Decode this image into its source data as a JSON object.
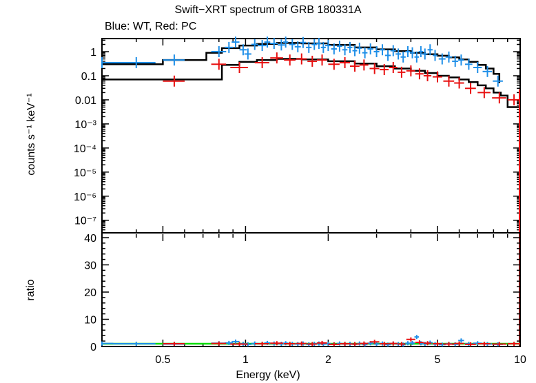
{
  "chart_data": [
    {
      "type": "scatter",
      "title": "Swift−XRT spectrum of GRB 180331A",
      "subtitle": "Blue: WT, Red: PC",
      "xlabel": "Energy (keV)",
      "ylabel": "counts s⁻¹ keV⁻¹",
      "xscale": "log",
      "yscale": "log",
      "xlim": [
        0.3,
        10
      ],
      "ylim": [
        3e-08,
        3.5
      ],
      "y_tick_labels": [
        "1",
        "0.1",
        "0.01",
        "10⁻³",
        "10⁻⁴",
        "10⁻⁵",
        "10⁻⁶",
        "10⁻⁷"
      ],
      "colors": {
        "wt": "#1f8fe8",
        "pc": "#e81010",
        "model": "#000000"
      },
      "series": [
        {
          "name": "WT",
          "x": [
            0.3,
            0.4,
            0.55,
            0.8,
            0.87,
            0.92,
            0.98,
            1.02,
            1.08,
            1.15,
            1.2,
            1.27,
            1.35,
            1.4,
            1.48,
            1.55,
            1.62,
            1.7,
            1.78,
            1.85,
            1.92,
            2.0,
            2.1,
            2.2,
            2.3,
            2.4,
            2.5,
            2.6,
            2.72,
            2.85,
            3.0,
            3.15,
            3.3,
            3.45,
            3.6,
            3.75,
            3.9,
            4.05,
            4.2,
            4.35,
            4.5,
            4.7,
            4.9,
            5.2,
            5.5,
            5.8,
            6.1,
            6.5,
            7.0,
            7.6,
            8.3
          ],
          "y": [
            0.35,
            0.35,
            0.45,
            1.0,
            1.5,
            2.5,
            1.2,
            0.8,
            2.0,
            1.8,
            2.5,
            2.2,
            1.9,
            2.5,
            2.0,
            1.6,
            2.4,
            1.5,
            2.0,
            2.2,
            1.5,
            1.8,
            1.3,
            1.7,
            1.2,
            1.5,
            1.1,
            1.4,
            0.9,
            1.3,
            1.0,
            1.2,
            0.7,
            1.1,
            0.8,
            0.6,
            1.0,
            0.9,
            0.6,
            1.0,
            0.8,
            1.2,
            0.7,
            0.5,
            0.6,
            0.4,
            0.45,
            0.3,
            0.22,
            0.15,
            0.06
          ],
          "xerr": [
            0.03,
            0.07,
            0.05,
            0.05,
            0.03,
            0.03,
            0.03,
            0.03,
            0.03,
            0.04,
            0.03,
            0.04,
            0.04,
            0.03,
            0.04,
            0.04,
            0.04,
            0.04,
            0.04,
            0.04,
            0.04,
            0.05,
            0.05,
            0.05,
            0.05,
            0.05,
            0.05,
            0.05,
            0.06,
            0.07,
            0.07,
            0.07,
            0.08,
            0.08,
            0.08,
            0.08,
            0.08,
            0.08,
            0.08,
            0.08,
            0.1,
            0.1,
            0.1,
            0.15,
            0.15,
            0.15,
            0.15,
            0.2,
            0.25,
            0.3,
            0.35
          ],
          "ratio": [
            1.1,
            1.0,
            0.9,
            1.2,
            1.3,
            1.8,
            1.0,
            0.8,
            1.1,
            1.0,
            1.3,
            1.1,
            1.0,
            1.2,
            1.0,
            0.9,
            1.1,
            0.8,
            1.0,
            1.1,
            0.9,
            1.0,
            0.8,
            1.1,
            0.9,
            1.0,
            0.8,
            1.1,
            0.7,
            1.2,
            0.9,
            1.1,
            0.7,
            1.1,
            0.9,
            0.7,
            1.2,
            1.3,
            3.5,
            1.2,
            1.0,
            1.4,
            0.9,
            0.7,
            1.0,
            0.8,
            2.2,
            1.0,
            1.2,
            0.9,
            0.8
          ]
        },
        {
          "name": "PC",
          "x": [
            0.55,
            0.8,
            0.95,
            1.15,
            1.3,
            1.45,
            1.6,
            1.75,
            1.9,
            2.1,
            2.3,
            2.5,
            2.7,
            2.95,
            3.2,
            3.45,
            3.7,
            4.0,
            4.3,
            4.6,
            5.0,
            5.5,
            6.0,
            6.6,
            7.4,
            8.4,
            9.5
          ],
          "y": [
            0.06,
            0.3,
            0.22,
            0.35,
            0.55,
            0.45,
            0.5,
            0.4,
            0.45,
            0.3,
            0.35,
            0.25,
            0.28,
            0.2,
            0.18,
            0.22,
            0.14,
            0.16,
            0.12,
            0.1,
            0.09,
            0.06,
            0.05,
            0.03,
            0.02,
            0.012,
            0.01
          ],
          "xerr": [
            0.05,
            0.05,
            0.07,
            0.07,
            0.07,
            0.07,
            0.07,
            0.07,
            0.08,
            0.1,
            0.1,
            0.1,
            0.1,
            0.12,
            0.12,
            0.12,
            0.12,
            0.15,
            0.15,
            0.15,
            0.2,
            0.25,
            0.25,
            0.3,
            0.4,
            0.5,
            0.5
          ],
          "ratio": [
            1.0,
            1.1,
            0.9,
            1.0,
            1.2,
            1.0,
            1.1,
            0.9,
            1.3,
            0.8,
            1.0,
            0.9,
            1.1,
            1.7,
            1.0,
            1.1,
            0.9,
            2.6,
            1.5,
            1.2,
            1.0,
            0.9,
            1.1,
            0.8,
            1.0,
            0.9,
            1.0
          ]
        }
      ],
      "models": [
        {
          "name": "WT model",
          "x": [
            0.3,
            0.5,
            0.72,
            0.82,
            0.95,
            1.1,
            1.3,
            1.6,
            2.0,
            2.5,
            3.0,
            3.5,
            4.0,
            4.5,
            5.0,
            5.5,
            6.0,
            6.5,
            7.0,
            7.5,
            8.0,
            8.4
          ],
          "y": [
            0.3,
            0.45,
            0.9,
            1.4,
            1.8,
            2.1,
            2.3,
            2.2,
            1.9,
            1.5,
            1.25,
            1.05,
            0.9,
            0.78,
            0.68,
            0.58,
            0.48,
            0.38,
            0.28,
            0.2,
            0.12,
            0.05
          ]
        },
        {
          "name": "PC model",
          "x": [
            0.3,
            0.72,
            0.82,
            0.95,
            1.1,
            1.3,
            1.6,
            2.0,
            2.5,
            3.0,
            3.5,
            4.0,
            4.5,
            5.0,
            5.5,
            6.0,
            6.5,
            7.0,
            7.5,
            8.0,
            8.5,
            9.0,
            10.0
          ],
          "y": [
            0.07,
            0.07,
            0.28,
            0.38,
            0.45,
            0.5,
            0.48,
            0.4,
            0.32,
            0.25,
            0.2,
            0.16,
            0.13,
            0.1,
            0.085,
            0.07,
            0.055,
            0.04,
            0.03,
            0.02,
            0.015,
            0.005,
            0.005
          ]
        }
      ]
    },
    {
      "type": "scatter",
      "ylabel": "ratio",
      "xlabel": "Energy (keV)",
      "xscale": "log",
      "xlim": [
        0.3,
        10
      ],
      "ylim": [
        0,
        40
      ],
      "y_ticks": [
        0,
        10,
        20,
        30,
        40
      ],
      "x_ticks": [
        0.5,
        1,
        2,
        5,
        10
      ],
      "x_tick_labels": [
        "0.5",
        "1",
        "2",
        "5",
        "10"
      ],
      "reference_line": {
        "y": 1,
        "color": "#00dd00"
      }
    }
  ]
}
